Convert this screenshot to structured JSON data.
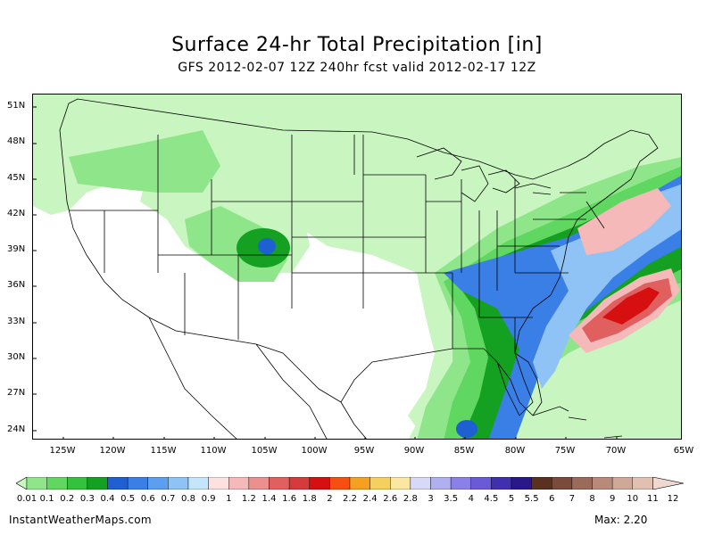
{
  "header": {
    "title": "Surface 24-hr Total Precipitation [in]",
    "subtitle": "GFS 2012-02-07 12Z 240hr fcst valid 2012-02-17 12Z"
  },
  "map": {
    "lat_labels": [
      "51N",
      "48N",
      "45N",
      "42N",
      "39N",
      "36N",
      "33N",
      "30N",
      "27N",
      "24N"
    ],
    "lon_labels": [
      "125W",
      "120W",
      "115W",
      "110W",
      "105W",
      "100W",
      "95W",
      "90W",
      "85W",
      "80W",
      "75W",
      "70W",
      "65W"
    ]
  },
  "legend": {
    "labels": [
      "0.01",
      "0.1",
      "0.2",
      "0.3",
      "0.4",
      "0.5",
      "0.6",
      "0.7",
      "0.8",
      "0.9",
      "1",
      "1.2",
      "1.4",
      "1.6",
      "1.8",
      "2",
      "2.2",
      "2.4",
      "2.6",
      "2.8",
      "3",
      "3.5",
      "4",
      "4.5",
      "5",
      "5.5",
      "6",
      "7",
      "8",
      "9",
      "10",
      "11",
      "12"
    ],
    "colors": [
      "#c8f5c0",
      "#8fe68a",
      "#5fd760",
      "#34c23c",
      "#14a020",
      "#1e5fd2",
      "#3a7fe6",
      "#5a9ff0",
      "#8fc3f5",
      "#c5e6fa",
      "#fde0e0",
      "#f5b9b9",
      "#ec8f8f",
      "#e06060",
      "#d63a3a",
      "#d61010",
      "#f55010",
      "#f5a020",
      "#f5d060",
      "#fae8a0",
      "#d8d8f8",
      "#b0b0f0",
      "#8a80e8",
      "#6a5ad8",
      "#4030b0",
      "#281888",
      "#5a3020",
      "#7a4a3a",
      "#9a6a5a",
      "#b88a7a",
      "#d0a898",
      "#e0c0b0",
      "#f0d8d0"
    ]
  },
  "footer": {
    "site": "InstantWeatherMaps.com",
    "max_label": "Max:  2.20"
  }
}
